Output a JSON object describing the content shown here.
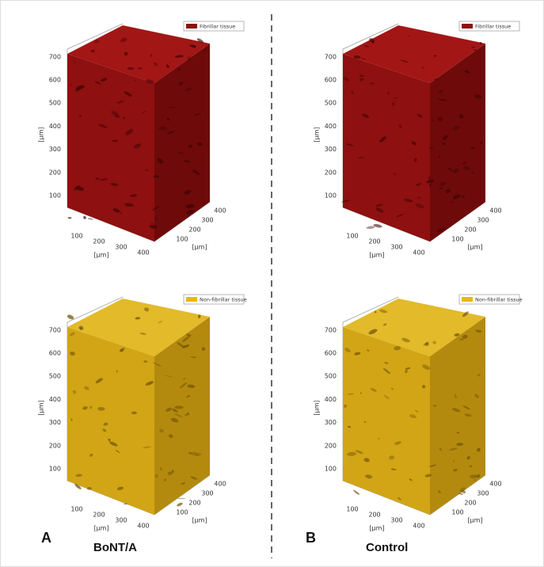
{
  "panels": [
    {
      "legend": "Fibrillar tissue",
      "z_ticks": [
        100,
        200,
        300,
        400,
        500,
        600,
        700
      ],
      "x_ticks": [
        100,
        200,
        300,
        400
      ],
      "y_ticks": [
        100,
        200,
        300,
        400
      ],
      "z_label": "[μm]",
      "x_label": "[μm]",
      "y_label": "[μm]"
    },
    {
      "legend": "Fibrillar tissue",
      "z_ticks": [
        100,
        200,
        300,
        400,
        500,
        600,
        700
      ],
      "x_ticks": [
        100,
        200,
        300,
        400
      ],
      "y_ticks": [
        100,
        200,
        300,
        400
      ],
      "z_label": "[μm]",
      "x_label": "[μm]",
      "y_label": "[μm]"
    },
    {
      "legend": "Non-fibrillar tissue",
      "z_ticks": [
        100,
        200,
        300,
        400,
        500,
        600,
        700
      ],
      "x_ticks": [
        100,
        200,
        300,
        400
      ],
      "y_ticks": [
        100,
        200,
        300,
        400
      ],
      "z_label": "[μm]",
      "x_label": "[μm]",
      "y_label": "[μm]"
    },
    {
      "legend": "Non-fibrillar tissue",
      "z_ticks": [
        100,
        200,
        300,
        400,
        500,
        600,
        700
      ],
      "x_ticks": [
        100,
        200,
        300,
        400
      ],
      "y_ticks": [
        100,
        200,
        300,
        400
      ],
      "z_label": "[μm]",
      "x_label": "[μm]",
      "y_label": "[μm]"
    }
  ],
  "groups": [
    {
      "letter": "A",
      "caption": "BoNT/A"
    },
    {
      "letter": "B",
      "caption": "Control"
    }
  ]
}
